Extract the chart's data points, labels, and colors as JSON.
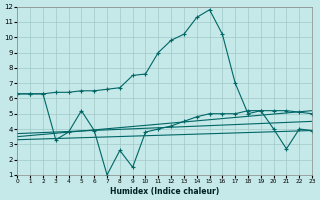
{
  "bg_color": "#c5e8e8",
  "grid_color": "#a0c8c8",
  "line_color": "#006666",
  "xlabel": "Humidex (Indice chaleur)",
  "xlim": [
    0,
    23
  ],
  "ylim": [
    1,
    12
  ],
  "xticks": [
    0,
    1,
    2,
    3,
    4,
    5,
    6,
    7,
    8,
    9,
    10,
    11,
    12,
    13,
    14,
    15,
    16,
    17,
    18,
    19,
    20,
    21,
    22,
    23
  ],
  "yticks": [
    1,
    2,
    3,
    4,
    5,
    6,
    7,
    8,
    9,
    10,
    11,
    12
  ],
  "main_x": [
    0,
    1,
    2,
    3,
    4,
    5,
    6,
    7,
    8,
    9,
    10,
    11,
    12,
    13,
    14,
    15,
    16,
    17,
    18,
    19,
    20,
    21,
    22,
    23
  ],
  "main_y": [
    6.3,
    6.3,
    6.3,
    6.4,
    6.4,
    6.5,
    6.5,
    6.6,
    6.7,
    7.5,
    7.6,
    9.0,
    9.8,
    10.2,
    11.3,
    11.8,
    10.2,
    7.0,
    5.0,
    5.2,
    5.2,
    5.2,
    5.1,
    5.0
  ],
  "zz_x": [
    0,
    1,
    2,
    3,
    4,
    5,
    6,
    7,
    8,
    9,
    10,
    11,
    12,
    13,
    14,
    15,
    16,
    17,
    18,
    19,
    20,
    21,
    22,
    23
  ],
  "zz_y": [
    6.3,
    6.3,
    6.3,
    3.3,
    3.8,
    5.2,
    3.9,
    1.0,
    2.6,
    1.5,
    3.8,
    4.0,
    4.2,
    4.5,
    4.8,
    5.0,
    5.0,
    5.0,
    5.2,
    5.2,
    4.0,
    2.7,
    4.0,
    3.9
  ],
  "trend1_x": [
    0,
    23
  ],
  "trend1_y": [
    3.3,
    3.9
  ],
  "trend2_x": [
    0,
    23
  ],
  "trend2_y": [
    3.7,
    4.5
  ],
  "trend3_x": [
    0,
    23
  ],
  "trend3_y": [
    3.5,
    5.2
  ]
}
